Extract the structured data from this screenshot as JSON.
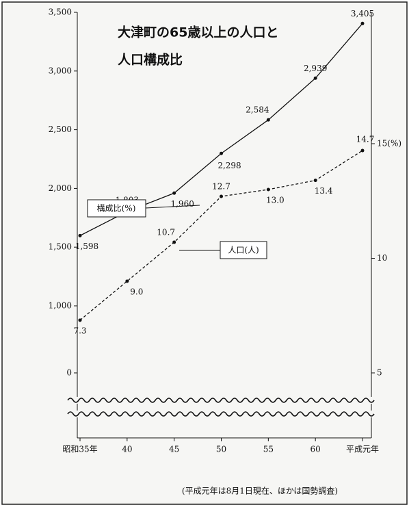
{
  "chart_data": {
    "type": "line",
    "title": [
      "大津町の65歳以上の人口と",
      "人口構成比"
    ],
    "categories": [
      "昭和35年",
      "40",
      "45",
      "50",
      "55",
      "60",
      "平成元年"
    ],
    "series": [
      {
        "name": "人口(人)",
        "color": "#111111",
        "style": "solid",
        "values": [
          1598,
          1803,
          1960,
          2298,
          2584,
          2939,
          3405
        ],
        "value_labels": [
          "1,598",
          "1,803",
          "1,960",
          "2,298",
          "2,584",
          "2,939",
          "3,405"
        ]
      },
      {
        "name": "構成比(%)",
        "color": "#111111",
        "style": "dashed",
        "axis": "y2",
        "values": [
          7.3,
          9.0,
          10.7,
          12.7,
          13.0,
          13.4,
          14.7
        ],
        "value_labels": [
          "7.3",
          "9.0",
          "10.7",
          "12.7",
          "13.0",
          "13.4",
          "14.7"
        ]
      }
    ],
    "ylim": [
      0,
      3500
    ],
    "yticks": [
      0,
      {
        "value": 1000,
        "label": "1,000"
      },
      {
        "value": 1500,
        "label": "1,500"
      },
      {
        "value": 2000,
        "label": "2,000"
      },
      {
        "value": 2500,
        "label": "2,500"
      },
      {
        "value": 3000,
        "label": "3,000"
      },
      {
        "value": 3500,
        "label": "3,500"
      }
    ],
    "y2lim": [
      5,
      15
    ],
    "y2ticks": [
      5,
      10,
      {
        "value": 15,
        "label": "15(%)"
      }
    ],
    "axis_break": true,
    "note": "(平成元年は8月1日現在、ほかは国勢調査)"
  }
}
